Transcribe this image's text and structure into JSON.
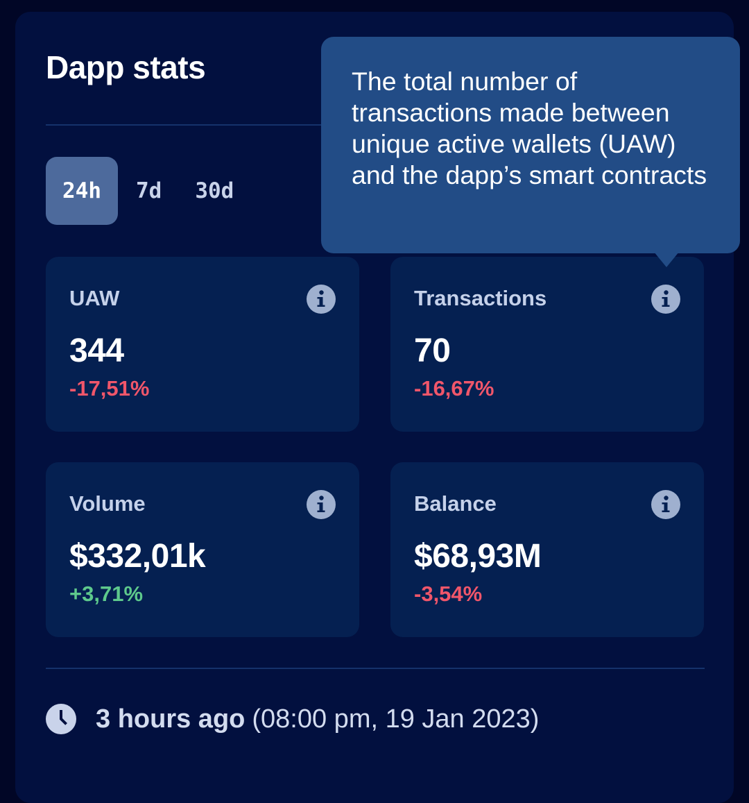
{
  "header": {
    "title": "Dapp stats"
  },
  "tabs": [
    {
      "label": "24h",
      "active": true
    },
    {
      "label": "7d",
      "active": false
    },
    {
      "label": "30d",
      "active": false
    }
  ],
  "stats": {
    "uaw": {
      "label": "UAW",
      "value": "344",
      "change": "-17,51%",
      "trend": "negative"
    },
    "transactions": {
      "label": "Transactions",
      "value": "70",
      "change": "-16,67%",
      "trend": "negative"
    },
    "volume": {
      "label": "Volume",
      "value": "$332,01k",
      "change": "+3,71%",
      "trend": "positive"
    },
    "balance": {
      "label": "Balance",
      "value": "$68,93M",
      "change": "-3,54%",
      "trend": "negative"
    }
  },
  "tooltip": {
    "text": "The total number of transactions made between unique active wallets (UAW) and the dapp’s smart contracts",
    "target": "transactions-info-icon"
  },
  "updated": {
    "relative": "3 hours ago",
    "absolute": "(08:00 pm, 19 Jan 2023)"
  },
  "icons": {
    "info": "info-icon",
    "clock": "clock-icon"
  },
  "colors": {
    "background": "#010626",
    "panel": "#02103f",
    "card": "#052051",
    "tab_active": "#4d6a9c",
    "tooltip": "#224c86",
    "negative": "#f0566a",
    "positive": "#5ec98c",
    "icon": "#9fb0cf"
  }
}
